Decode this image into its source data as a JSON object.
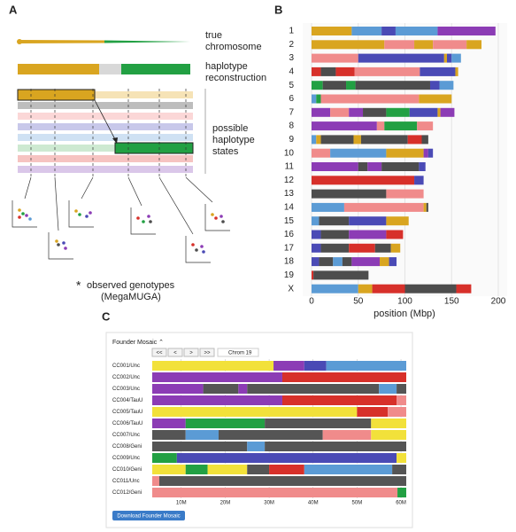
{
  "panel_labels": [
    "A",
    "B",
    "C"
  ],
  "diagram": {
    "true_chromosome": [
      "true",
      "chromosome"
    ],
    "reconstruction": [
      "haplotype",
      "reconstruction"
    ],
    "states": [
      "possible",
      "haplotype",
      "states"
    ],
    "star": "*",
    "observed": [
      "observed genotypes",
      "(MegaMUGA)"
    ]
  },
  "chart_data": [
    {
      "type": "mosaic",
      "x_label": "position (Mbp)",
      "xlim": [
        0,
        200
      ],
      "xticks": [
        0,
        50,
        100,
        150,
        200
      ],
      "grid": true,
      "categories": [
        "1",
        "2",
        "3",
        "4",
        "5",
        "6",
        "7",
        "8",
        "9",
        "10",
        "11",
        "12",
        "13",
        "14",
        "15",
        "16",
        "17",
        "18",
        "19",
        "X"
      ],
      "segments": [
        [
          [
            43,
            "#d9a520"
          ],
          [
            32,
            "#5b9bd5"
          ],
          [
            15,
            "#4a4ab5"
          ],
          [
            45,
            "#5b9bd5"
          ],
          [
            62,
            "#8c3cb5"
          ]
        ],
        [
          [
            78,
            "#d9a520"
          ],
          [
            32,
            "#f08b8b"
          ],
          [
            20,
            "#d9a520"
          ],
          [
            36,
            "#f08b8b"
          ],
          [
            16,
            "#d9a520"
          ]
        ],
        [
          [
            50,
            "#f08b8b"
          ],
          [
            92,
            "#4a4ab5"
          ],
          [
            3,
            "#d9a520"
          ],
          [
            5,
            "#4a4ab5"
          ],
          [
            10,
            "#5b9bd5"
          ]
        ],
        [
          [
            10,
            "#d7302a"
          ],
          [
            16,
            "#4d4d4d"
          ],
          [
            20,
            "#d7302a"
          ],
          [
            70,
            "#f08b8b"
          ],
          [
            38,
            "#4a4ab5"
          ],
          [
            3,
            "#d9a520"
          ]
        ],
        [
          [
            12,
            "#22a043"
          ],
          [
            25,
            "#4d4d4d"
          ],
          [
            10,
            "#22a043"
          ],
          [
            80,
            "#4d4d4d"
          ],
          [
            10,
            "#4a4ab5"
          ],
          [
            15,
            "#5b9bd5"
          ]
        ],
        [
          [
            5,
            "#5b9bd5"
          ],
          [
            5,
            "#22a043"
          ],
          [
            105,
            "#f08b8b"
          ],
          [
            35,
            "#d9a520"
          ]
        ],
        [
          [
            20,
            "#8c3cb5"
          ],
          [
            20,
            "#f08b8b"
          ],
          [
            15,
            "#8c3cb5"
          ],
          [
            25,
            "#4d4d4d"
          ],
          [
            25,
            "#22a043"
          ],
          [
            30,
            "#4a4ab5"
          ],
          [
            3,
            "#d9a520"
          ],
          [
            15,
            "#8c3cb5"
          ]
        ],
        [
          [
            70,
            "#8c3cb5"
          ],
          [
            8,
            "#f08b8b"
          ],
          [
            35,
            "#22a043"
          ],
          [
            17,
            "#f08b8b"
          ]
        ],
        [
          [
            5,
            "#5b9bd5"
          ],
          [
            5,
            "#d9a520"
          ],
          [
            35,
            "#4d4d4d"
          ],
          [
            8,
            "#d9a520"
          ],
          [
            50,
            "#4d4d4d"
          ],
          [
            15,
            "#d7302a"
          ],
          [
            7,
            "#4d4d4d"
          ]
        ],
        [
          [
            20,
            "#f08b8b"
          ],
          [
            60,
            "#5b9bd5"
          ],
          [
            40,
            "#d9a520"
          ],
          [
            5,
            "#8c3cb5"
          ],
          [
            5,
            "#4a4ab5"
          ]
        ],
        [
          [
            50,
            "#8c3cb5"
          ],
          [
            10,
            "#4d4d4d"
          ],
          [
            15,
            "#8c3cb5"
          ],
          [
            40,
            "#4d4d4d"
          ],
          [
            7,
            "#4a4ab5"
          ]
        ],
        [
          [
            110,
            "#d7302a"
          ],
          [
            10,
            "#4a4ab5"
          ]
        ],
        [
          [
            80,
            "#4d4d4d"
          ],
          [
            40,
            "#f08b8b"
          ]
        ],
        [
          [
            35,
            "#5b9bd5"
          ],
          [
            85,
            "#f08b8b"
          ],
          [
            3,
            "#d9a520"
          ],
          [
            2,
            "#4d4d4d"
          ]
        ],
        [
          [
            8,
            "#5b9bd5"
          ],
          [
            32,
            "#4d4d4d"
          ],
          [
            40,
            "#4a4ab5"
          ],
          [
            24,
            "#d9a520"
          ]
        ],
        [
          [
            10,
            "#4a4ab5"
          ],
          [
            30,
            "#4d4d4d"
          ],
          [
            40,
            "#8c3cb5"
          ],
          [
            18,
            "#d7302a"
          ]
        ],
        [
          [
            10,
            "#4a4ab5"
          ],
          [
            30,
            "#4d4d4d"
          ],
          [
            28,
            "#d7302a"
          ],
          [
            17,
            "#4d4d4d"
          ],
          [
            10,
            "#d9a520"
          ]
        ],
        [
          [
            8,
            "#4a4ab5"
          ],
          [
            15,
            "#4d4d4d"
          ],
          [
            10,
            "#5b9bd5"
          ],
          [
            10,
            "#4d4d4d"
          ],
          [
            30,
            "#8c3cb5"
          ],
          [
            10,
            "#d9a520"
          ],
          [
            8,
            "#4a4ab5"
          ]
        ],
        [
          [
            2,
            "#d7302a"
          ],
          [
            59,
            "#4d4d4d"
          ]
        ],
        [
          [
            50,
            "#5b9bd5"
          ],
          [
            15,
            "#d9a520"
          ],
          [
            35,
            "#d7302a"
          ],
          [
            55,
            "#4d4d4d"
          ],
          [
            16,
            "#d7302a"
          ]
        ]
      ]
    },
    {
      "type": "mosaic",
      "title": "Founder Mosaic ⌃",
      "nav": [
        "<<",
        "<",
        ">",
        ">>"
      ],
      "chrom": "Chrom 19",
      "button": "Download Founder Mosaic",
      "xlim": [
        3.4,
        61.2
      ],
      "xticks": [
        {
          "value": 10,
          "label": "10M"
        },
        {
          "value": 20,
          "label": "20M"
        },
        {
          "value": 30,
          "label": "30M"
        },
        {
          "value": 40,
          "label": "40M"
        },
        {
          "value": 50,
          "label": "50M"
        },
        {
          "value": 60,
          "label": "60M"
        }
      ],
      "grid": true,
      "categories": [
        "CC001/Unc",
        "CC002/Unc",
        "CC003/Unc",
        "CC004/TauU",
        "CC005/TauU",
        "CC006/TauU",
        "CC007/Unc",
        "CC008/Geni",
        "CC009/Unc",
        "CC010/Geni",
        "CC011/Unc",
        "CC012/Geni"
      ],
      "segments": [
        [
          [
            27.6,
            "#f2e13a"
          ],
          [
            7,
            "#8c3cb5"
          ],
          [
            5,
            "#4a4ab5"
          ],
          [
            18.2,
            "#5b9bd5"
          ]
        ],
        [
          [
            29.6,
            "#8c3cb5"
          ],
          [
            28.2,
            "#d7302a"
          ]
        ],
        [
          [
            11.6,
            "#8c3cb5"
          ],
          [
            8,
            "#555555"
          ],
          [
            2,
            "#8c3cb5"
          ],
          [
            30,
            "#555555"
          ],
          [
            4,
            "#5b9bd5"
          ],
          [
            2.2,
            "#555555"
          ]
        ],
        [
          [
            29.6,
            "#8c3cb5"
          ],
          [
            26,
            "#d7302a"
          ],
          [
            2.2,
            "#f08b8b"
          ]
        ],
        [
          [
            46.6,
            "#f2e13a"
          ],
          [
            7,
            "#d7302a"
          ],
          [
            4.2,
            "#f08b8b"
          ]
        ],
        [
          [
            7.6,
            "#8c3cb5"
          ],
          [
            18,
            "#22a043"
          ],
          [
            24.2,
            "#555555"
          ],
          [
            8,
            "#f2e13a"
          ]
        ],
        [
          [
            7.6,
            "#555555"
          ],
          [
            7.5,
            "#5b9bd5"
          ],
          [
            23.7,
            "#555555"
          ],
          [
            11,
            "#f08b8b"
          ],
          [
            8,
            "#f2e13a"
          ]
        ],
        [
          [
            21.6,
            "#555555"
          ],
          [
            4,
            "#5b9bd5"
          ],
          [
            32.2,
            "#555555"
          ]
        ],
        [
          [
            5.6,
            "#22a043"
          ],
          [
            50,
            "#4a4ab5"
          ],
          [
            2.2,
            "#f2e13a"
          ]
        ],
        [
          [
            7.6,
            "#f2e13a"
          ],
          [
            5,
            "#22a043"
          ],
          [
            9,
            "#f2e13a"
          ],
          [
            5,
            "#555555"
          ],
          [
            8,
            "#d7302a"
          ],
          [
            20,
            "#5b9bd5"
          ],
          [
            3.2,
            "#555555"
          ]
        ],
        [
          [
            1.6,
            "#f08b8b"
          ],
          [
            56.2,
            "#555555"
          ]
        ],
        [
          [
            55.8,
            "#f08b8b"
          ],
          [
            2,
            "#22a043"
          ]
        ]
      ]
    }
  ]
}
